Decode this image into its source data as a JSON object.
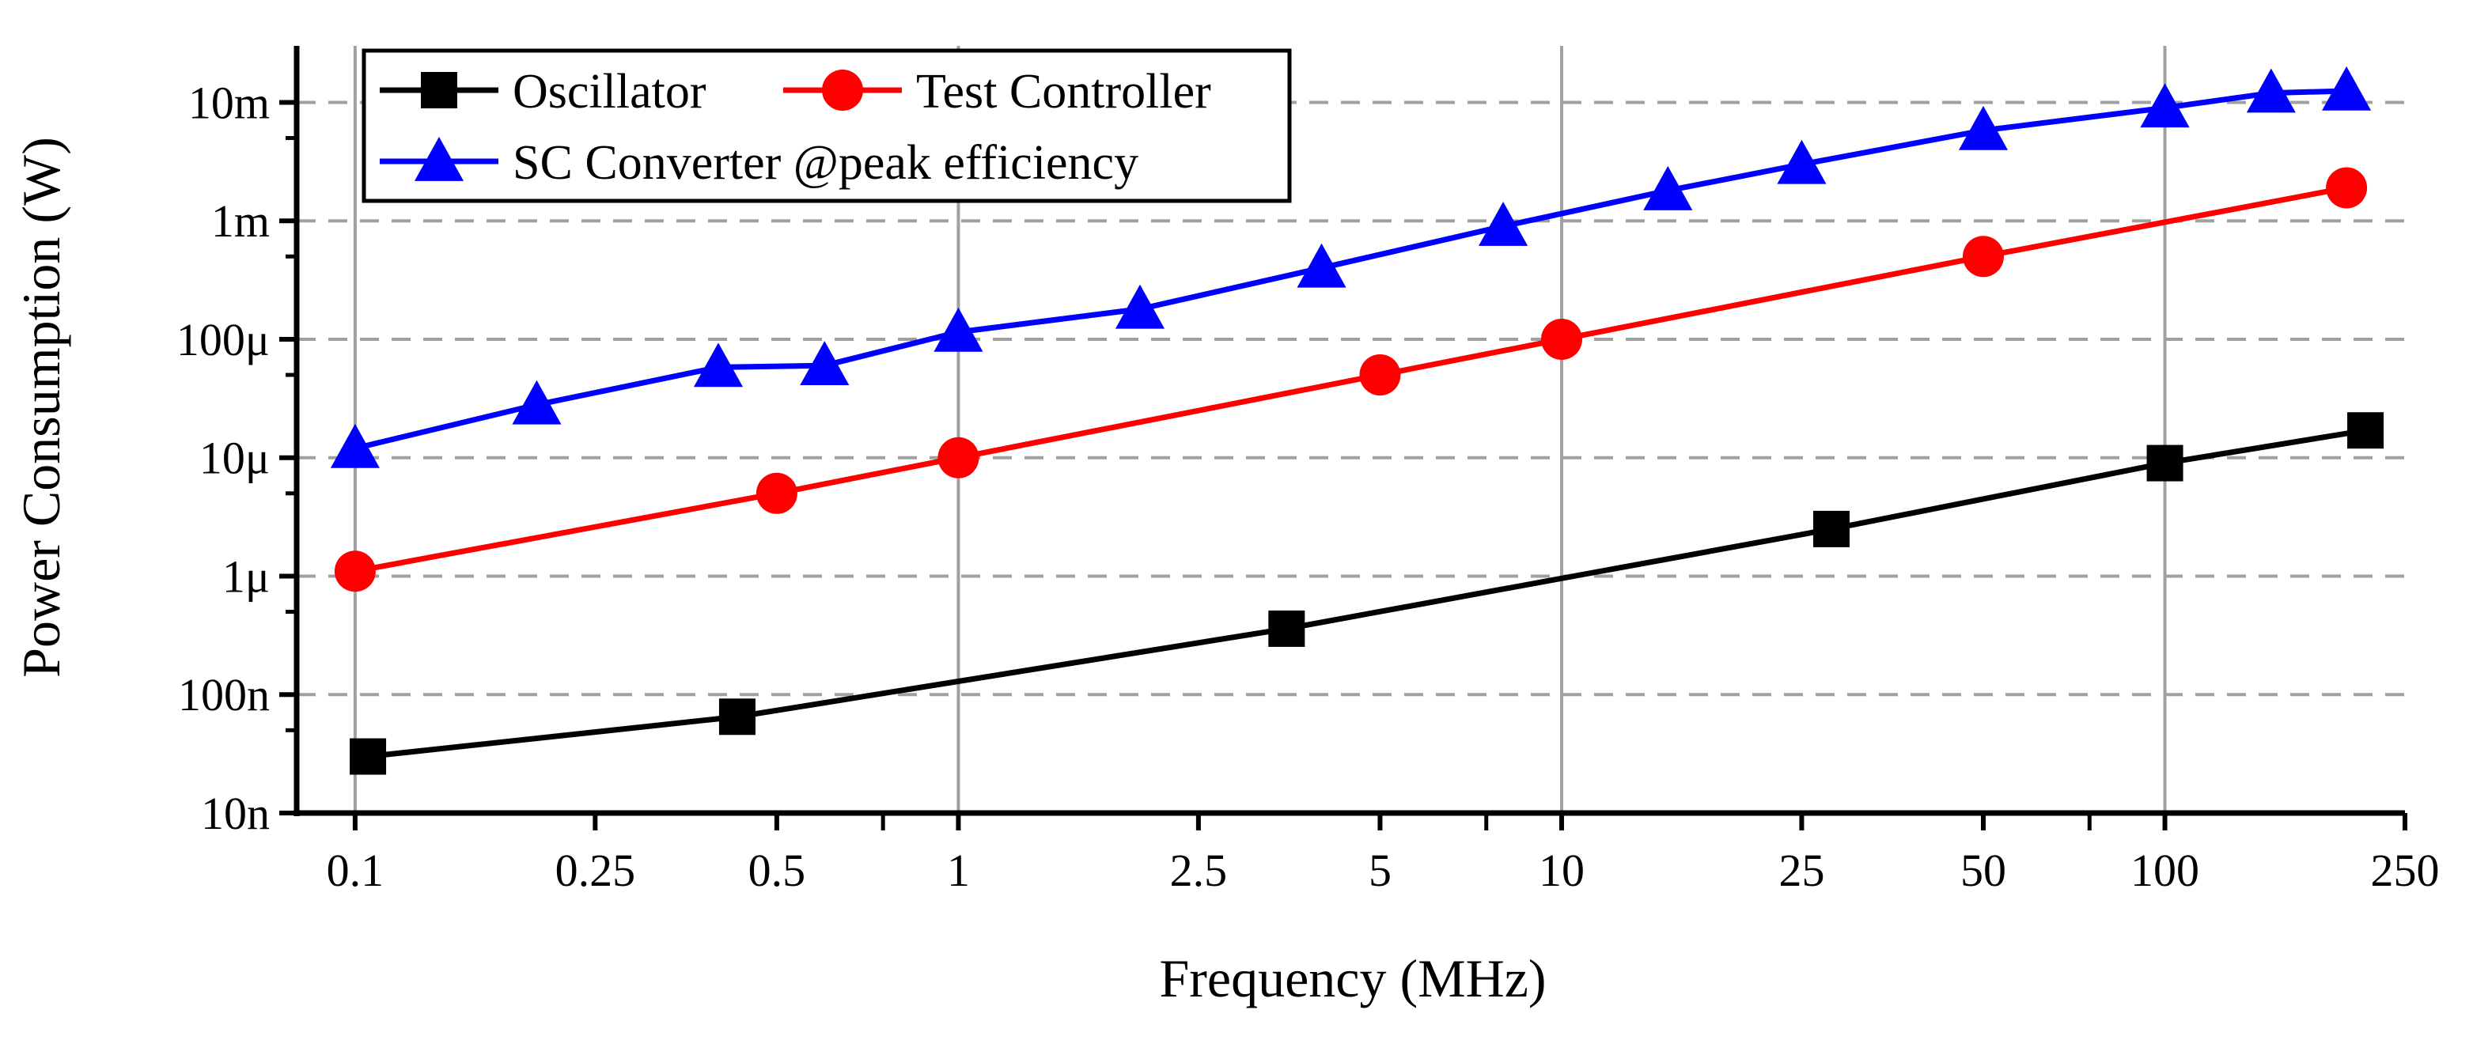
{
  "chart_data": {
    "type": "line",
    "title": "",
    "xlabel": "Frequency (MHz)",
    "ylabel": "Power Consumption (W)",
    "xscale": "log",
    "yscale": "log",
    "xlim": [
      0.08,
      250
    ],
    "ylim": [
      1e-08,
      0.03
    ],
    "grid": true,
    "legend_position": "top-left",
    "x_ticks": [
      {
        "value": 0.1,
        "label": "0.1"
      },
      {
        "value": 0.25,
        "label": "0.25"
      },
      {
        "value": 0.5,
        "label": "0.5"
      },
      {
        "value": 1,
        "label": "1"
      },
      {
        "value": 2.5,
        "label": "2.5"
      },
      {
        "value": 5,
        "label": "5"
      },
      {
        "value": 10,
        "label": "10"
      },
      {
        "value": 25,
        "label": "25"
      },
      {
        "value": 50,
        "label": "50"
      },
      {
        "value": 100,
        "label": "100"
      },
      {
        "value": 250,
        "label": "250"
      }
    ],
    "y_ticks": [
      {
        "value": 1e-08,
        "label": "10n"
      },
      {
        "value": 1e-07,
        "label": "100n"
      },
      {
        "value": 1e-06,
        "label": "1μ"
      },
      {
        "value": 1e-05,
        "label": "10μ"
      },
      {
        "value": 0.0001,
        "label": "100μ"
      },
      {
        "value": 0.001,
        "label": "1m"
      },
      {
        "value": 0.01,
        "label": "10m"
      }
    ],
    "series": [
      {
        "name": "Oscillator",
        "color": "#000000",
        "marker": "square",
        "x": [
          0.105,
          0.43,
          3.5,
          28,
          100,
          215
        ],
        "y": [
          3e-08,
          6.5e-08,
          3.6e-07,
          2.5e-06,
          9e-06,
          1.7e-05
        ]
      },
      {
        "name": "Test Controller",
        "color": "#ff0000",
        "marker": "circle",
        "x": [
          0.1,
          0.5,
          1,
          5,
          10,
          50,
          200
        ],
        "y": [
          1.1e-06,
          5e-06,
          1e-05,
          5e-05,
          0.0001,
          0.0005,
          0.0019
        ]
      },
      {
        "name": "SC Converter @peak efficiency",
        "color": "#0000ff",
        "marker": "triangle",
        "x": [
          0.1,
          0.2,
          0.4,
          0.6,
          1,
          2,
          4,
          8,
          15,
          25,
          50,
          100,
          150,
          200
        ],
        "y": [
          1.2e-05,
          2.8e-05,
          5.8e-05,
          6e-05,
          0.000115,
          0.00018,
          0.0004,
          0.0009,
          0.0018,
          0.003,
          0.0058,
          0.009,
          0.012,
          0.0125
        ]
      }
    ]
  }
}
